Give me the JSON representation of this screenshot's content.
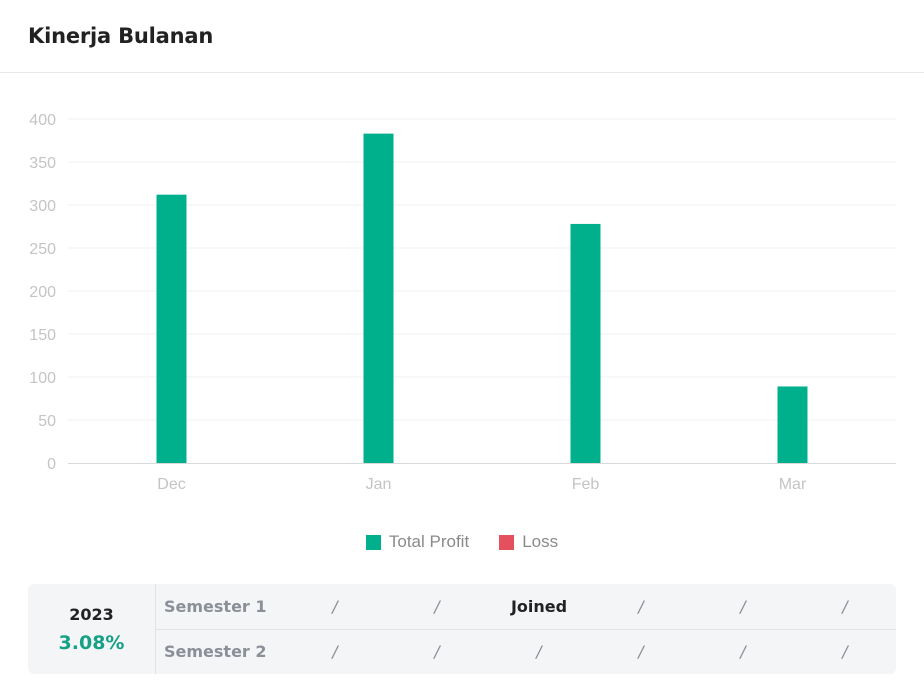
{
  "header": {
    "title": "Kinerja Bulanan"
  },
  "chart_data": {
    "type": "bar",
    "categories": [
      "Dec",
      "Jan",
      "Feb",
      "Mar"
    ],
    "series": [
      {
        "name": "Total Profit",
        "values": [
          312,
          383,
          278,
          89
        ],
        "color": "#00b08d"
      },
      {
        "name": "Loss",
        "values": [
          0,
          0,
          0,
          0
        ],
        "color": "#e5505f"
      }
    ],
    "yticks": [
      0,
      50,
      100,
      150,
      200,
      250,
      300,
      350,
      400
    ],
    "ylim": [
      0,
      400
    ],
    "grid": true,
    "legend_position": "bottom-center",
    "title": "",
    "xlabel": "",
    "ylabel": ""
  },
  "summary": {
    "year_label": "2023",
    "year_value": "3.08%",
    "rows": [
      {
        "label": "Semester 1",
        "cells": [
          "/",
          "/",
          "Joined",
          "/",
          "/",
          "/"
        ]
      },
      {
        "label": "Semester 2",
        "cells": [
          "/",
          "/",
          "/",
          "/",
          "/",
          "/"
        ]
      }
    ]
  }
}
